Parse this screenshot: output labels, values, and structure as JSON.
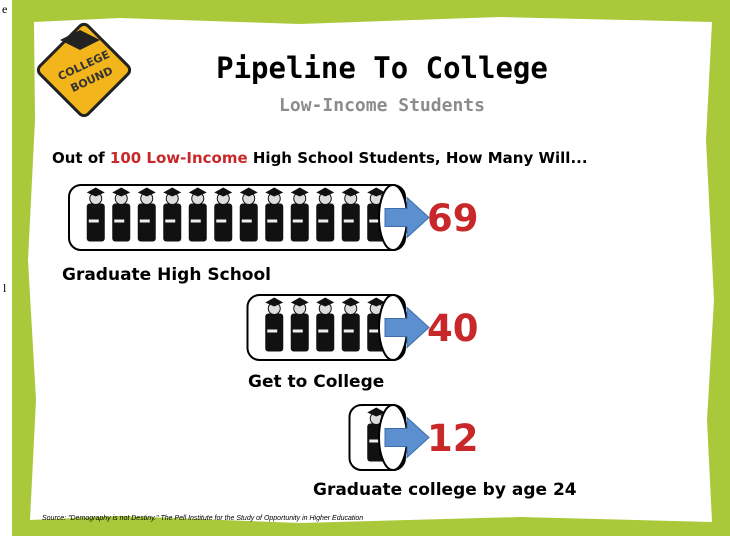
{
  "edge_fragments": [
    "e",
    "l"
  ],
  "badge": {
    "line1": "COLLEGE",
    "line2": "BOUND"
  },
  "header": {
    "title": "Pipeline To College",
    "subtitle": "Low-Income Students"
  },
  "question": {
    "before": "Out of",
    "highlight": "100 Low-Income",
    "after": "High School Students, How Many Will..."
  },
  "stages": [
    {
      "number": 69,
      "label": "Graduate High School",
      "figures": 12
    },
    {
      "number": 40,
      "label": "Get to College",
      "figures": 5
    },
    {
      "number": 12,
      "label": "Graduate college by age 24",
      "figures": 1
    }
  ],
  "source": "Source: \"Demography is not Destiny.\" The Pell Institute for the Study of Opportunity in Higher Education"
}
